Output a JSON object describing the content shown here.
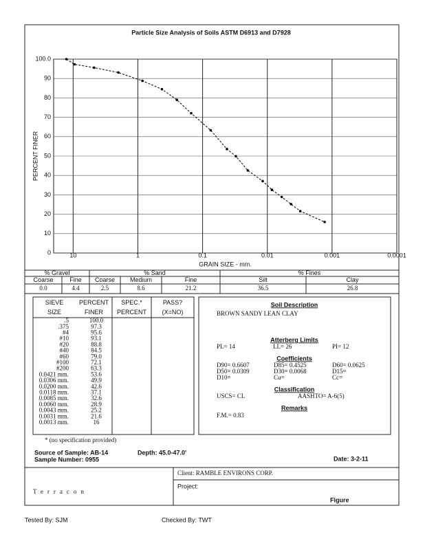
{
  "header": {
    "title": "Particle Size Analysis of Soils ASTM D6913 and D7928"
  },
  "chart_data": {
    "type": "line",
    "x_label": "GRAIN SIZE - mm.",
    "y_label": "PERCENT FINER",
    "x": [
      12.7,
      9.5,
      4.75,
      2.0,
      0.85,
      0.425,
      0.25,
      0.15,
      0.075,
      0.0421,
      0.0306,
      0.02,
      0.0118,
      0.0085,
      0.006,
      0.0043,
      0.0031,
      0.0013
    ],
    "values": [
      100.0,
      97.3,
      95.6,
      93.1,
      88.8,
      84.5,
      79.0,
      72.1,
      63.3,
      53.6,
      49.9,
      42.6,
      37.1,
      32.6,
      28.9,
      25.2,
      21.6,
      16
    ],
    "value_labels": [
      "100.0",
      "97.3",
      "95.6",
      "93.1",
      "88.8",
      "84.5",
      "79.0",
      "72.1",
      "63.3",
      "53.6",
      "49.9",
      "42.6",
      "37.1",
      "32.6",
      "28.9",
      "25.2",
      "21.6",
      "16"
    ],
    "color": "#000000",
    "xscale": "log",
    "xlim": [
      20,
      0.0001
    ],
    "xticks": [
      10,
      1,
      0.1,
      0.01,
      0.001,
      0.0001
    ],
    "ylim": [
      0,
      100
    ],
    "yticks": [
      0,
      10,
      20,
      30,
      40,
      50,
      60,
      70,
      80,
      90,
      {
        "value": 100,
        "label": "100.0"
      }
    ],
    "grid": true
  },
  "gradation": {
    "groups": [
      "% Gravel",
      "% Sand",
      "% Fines"
    ],
    "columns": [
      "Coarse",
      "Fine",
      "Coarse",
      "Medium",
      "Fine",
      "Silt",
      "Clay"
    ],
    "values": [
      "0.0",
      "4.4",
      "2.5",
      "8.6",
      "21.2",
      "36.5",
      "26.8"
    ]
  },
  "sieve_table": {
    "headers": [
      "SIEVE SIZE",
      "PERCENT FINER",
      "SPEC.* PERCENT",
      "PASS? (X=NO)"
    ],
    "sizes": [
      ".5",
      ".375",
      "#4",
      "#10",
      "#20",
      "#40",
      "#60",
      "#100",
      "#200",
      "0.0421 mm.",
      "0.0306 mm.",
      "0.0200 mm.",
      "0.0118 mm.",
      "0.0085 mm.",
      "0.0060 mm.",
      "0.0043 mm.",
      "0.0031 mm.",
      "0.0013 mm."
    ],
    "footnote": "* (no specification provided)"
  },
  "soil": {
    "title": "Soil Description",
    "description": "BROWN SANDY LEAN CLAY",
    "atterberg_title": "Atterberg Limits",
    "atterberg": [
      "PL= 14",
      "LL= 26",
      "PI= 12"
    ],
    "coefficients_title": "Coefficients",
    "coefficients": [
      "D90= 0.6607",
      "D85= 0.4525",
      "D60= 0.0625",
      "D50= 0.0309",
      "D30= 0.0068",
      "D15=",
      "D10=",
      "Cu=",
      "Cc="
    ],
    "classification_title": "Classification",
    "classification": [
      "USCS= CL",
      "AASHTO= A-6(5)"
    ],
    "remarks_title": "Remarks",
    "remarks": [
      "F.M.= 0.83"
    ]
  },
  "sample": {
    "source": "Source of Sample: AB-14",
    "depth": "Depth: 45.0-47.0'",
    "number": "Sample Number: 0955",
    "date": "Date: 3-2-11"
  },
  "footer": {
    "logo": "Terracon",
    "client": "Client: RAMBLE ENVIRONS CORP.",
    "project": "Project:",
    "figure": "Figure",
    "tested_by": "Tested By: SJM",
    "checked_by": "Checked By: TWT"
  }
}
